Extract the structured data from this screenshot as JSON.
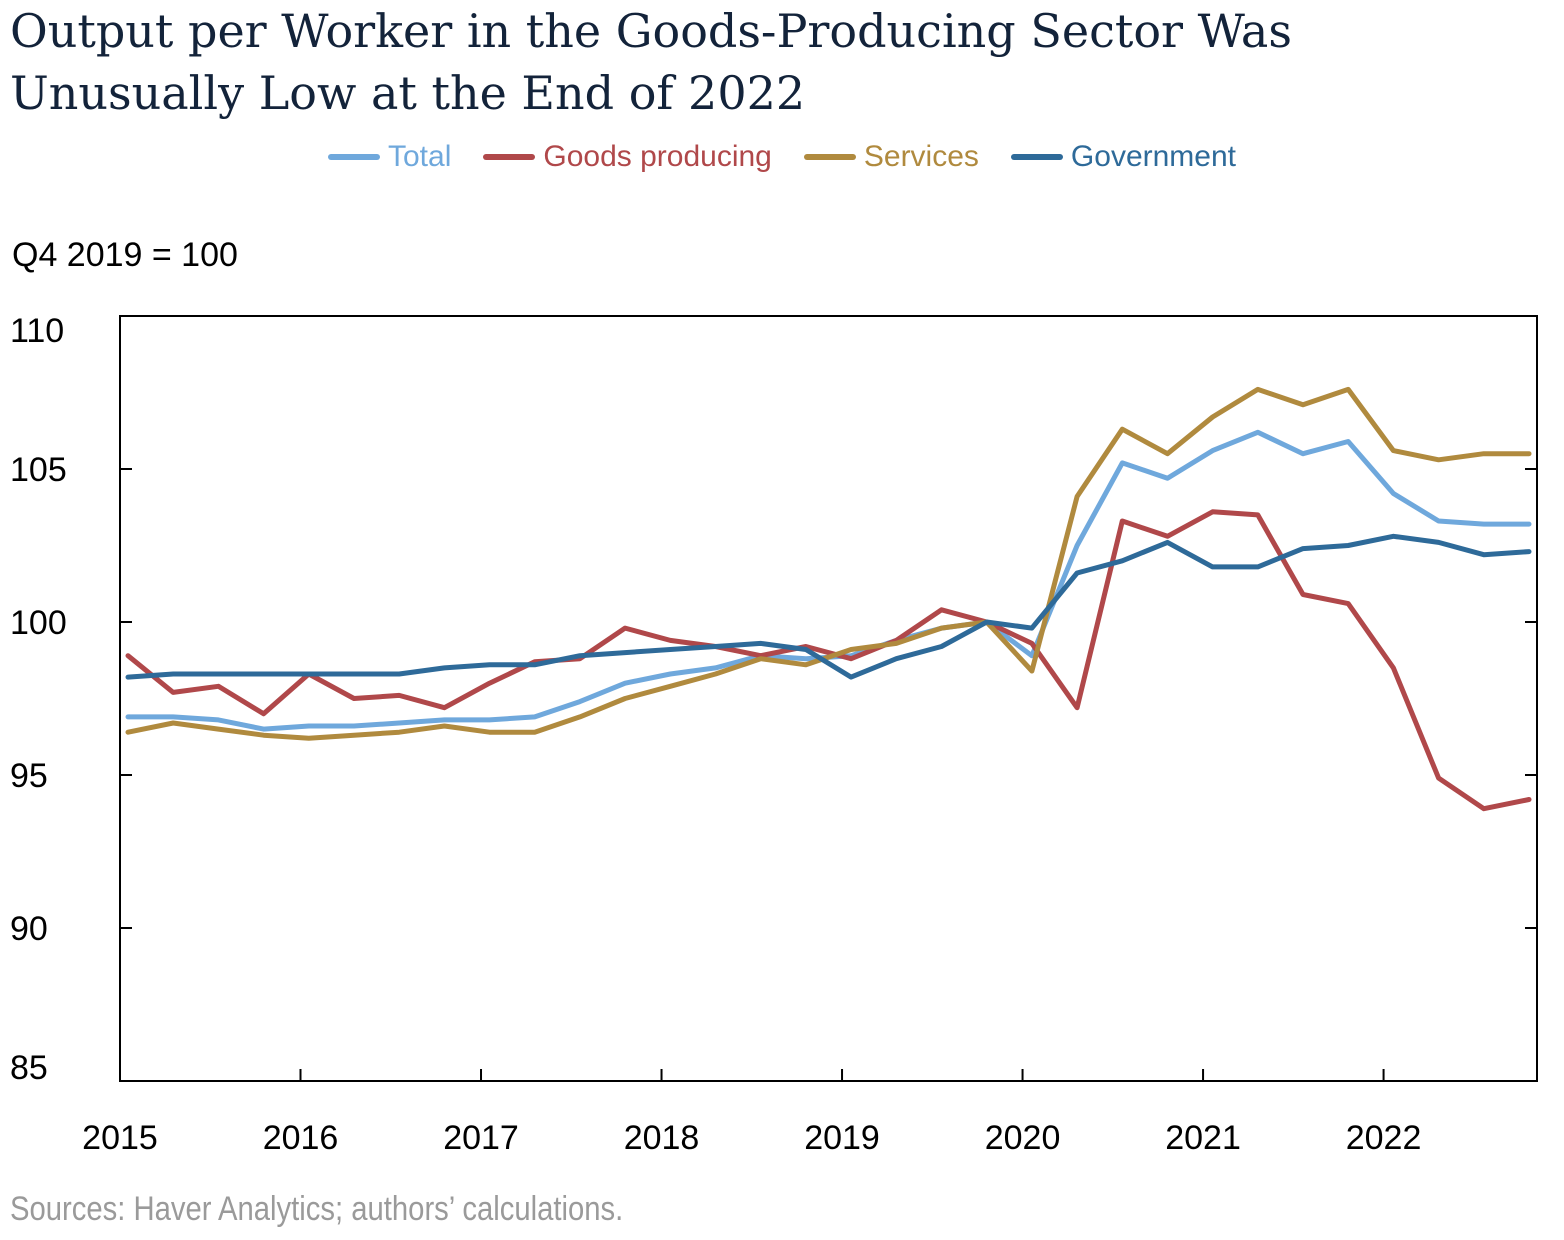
{
  "title_lines": [
    "Output per Worker in the Goods-Producing Sector Was",
    "Unusually Low at the End of 2022"
  ],
  "unit_label": "Q4 2019 = 100",
  "source": "Sources: Haver Analytics; authors’ calculations.",
  "colors": {
    "total": "#6fa8dc",
    "goods": "#b0484a",
    "services": "#b08a3e",
    "government": "#2e6a99",
    "axis": "#000000"
  },
  "chart_data": {
    "type": "line",
    "title": "Output per Worker in the Goods-Producing Sector Was Unusually Low at the End of 2022",
    "ylabel": "Q4 2019 = 100",
    "xlabel": "",
    "ylim": [
      85,
      110
    ],
    "yticks": [
      85,
      90,
      95,
      100,
      105,
      110
    ],
    "x_ticks": [
      "2015",
      "2016",
      "2017",
      "2018",
      "2019",
      "2020",
      "2021",
      "2022"
    ],
    "legend_position": "top-center",
    "grid": false,
    "x": [
      "2015 Q1",
      "2015 Q2",
      "2015 Q3",
      "2015 Q4",
      "2016 Q1",
      "2016 Q2",
      "2016 Q3",
      "2016 Q4",
      "2017 Q1",
      "2017 Q2",
      "2017 Q3",
      "2017 Q4",
      "2018 Q1",
      "2018 Q2",
      "2018 Q3",
      "2018 Q4",
      "2019 Q1",
      "2019 Q2",
      "2019 Q3",
      "2019 Q4",
      "2020 Q1",
      "2020 Q2",
      "2020 Q3",
      "2020 Q4",
      "2021 Q1",
      "2021 Q2",
      "2021 Q3",
      "2021 Q4",
      "2022 Q1",
      "2022 Q2",
      "2022 Q3",
      "2022 Q4"
    ],
    "series": [
      {
        "name": "Total",
        "color_key": "total",
        "values": [
          96.9,
          96.9,
          96.8,
          96.5,
          96.6,
          96.6,
          96.7,
          96.8,
          96.8,
          96.9,
          97.4,
          98.0,
          98.3,
          98.5,
          98.9,
          98.8,
          98.9,
          99.4,
          99.8,
          100.0,
          98.9,
          102.5,
          105.2,
          104.7,
          105.6,
          106.2,
          105.5,
          105.9,
          104.2,
          103.3,
          103.2,
          103.2
        ]
      },
      {
        "name": "Goods producing",
        "color_key": "goods",
        "values": [
          98.9,
          97.7,
          97.9,
          97.0,
          98.3,
          97.5,
          97.6,
          97.2,
          98.0,
          98.7,
          98.8,
          99.8,
          99.4,
          99.2,
          98.9,
          99.2,
          98.8,
          99.4,
          100.4,
          100.0,
          99.3,
          97.2,
          103.3,
          102.8,
          103.6,
          103.5,
          100.9,
          100.6,
          98.5,
          94.9,
          93.9,
          94.2
        ]
      },
      {
        "name": "Services",
        "color_key": "services",
        "values": [
          96.4,
          96.7,
          96.5,
          96.3,
          96.2,
          96.3,
          96.4,
          96.6,
          96.4,
          96.4,
          96.9,
          97.5,
          97.9,
          98.3,
          98.8,
          98.6,
          99.1,
          99.3,
          99.8,
          100.0,
          98.4,
          104.1,
          106.3,
          105.5,
          106.7,
          107.6,
          107.1,
          107.6,
          105.6,
          105.3,
          105.5,
          105.5
        ]
      },
      {
        "name": "Government",
        "color_key": "government",
        "values": [
          98.2,
          98.3,
          98.3,
          98.3,
          98.3,
          98.3,
          98.3,
          98.5,
          98.6,
          98.6,
          98.9,
          99.0,
          99.1,
          99.2,
          99.3,
          99.1,
          98.2,
          98.8,
          99.2,
          100.0,
          99.8,
          101.6,
          102.0,
          102.6,
          101.8,
          101.8,
          102.4,
          102.5,
          102.8,
          102.6,
          102.2,
          102.3
        ]
      }
    ]
  }
}
